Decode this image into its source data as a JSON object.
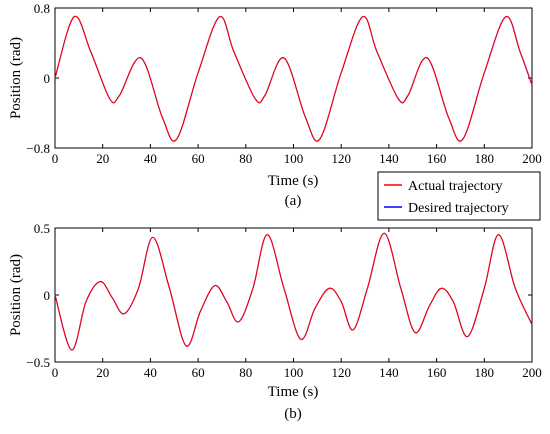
{
  "chart_data": [
    {
      "type": "line",
      "caption": "(a)",
      "xlabel": "Time (s)",
      "ylabel": "Position (rad)",
      "xlim": [
        0,
        200
      ],
      "ylim": [
        -0.8,
        0.8
      ],
      "xticks": [
        0,
        20,
        40,
        60,
        80,
        100,
        120,
        140,
        160,
        180,
        200
      ],
      "yticks": [
        -0.8,
        0,
        0.8
      ],
      "ytick_labels": [
        "−0.8",
        "0",
        "0.8"
      ],
      "grid": false,
      "series": [
        {
          "name": "Desired trajectory",
          "color": "#0000ff",
          "x": [
            0,
            8,
            15,
            23,
            27,
            36,
            45,
            51,
            60,
            69,
            75,
            84,
            88,
            96,
            105,
            111,
            120,
            129,
            135,
            144,
            148,
            156,
            165,
            171,
            180,
            189,
            195,
            200
          ],
          "y": [
            0.0,
            0.7,
            0.3,
            -0.24,
            -0.2,
            0.23,
            -0.45,
            -0.7,
            0.06,
            0.7,
            0.3,
            -0.24,
            -0.2,
            0.23,
            -0.45,
            -0.7,
            0.06,
            0.7,
            0.3,
            -0.24,
            -0.2,
            0.23,
            -0.45,
            -0.7,
            0.06,
            0.7,
            0.3,
            -0.08
          ]
        },
        {
          "name": "Actual trajectory",
          "color": "#ff0000",
          "x": [
            0,
            8,
            15,
            23,
            27,
            36,
            45,
            51,
            60,
            69,
            75,
            84,
            88,
            96,
            105,
            111,
            120,
            129,
            135,
            144,
            148,
            156,
            165,
            171,
            180,
            189,
            195,
            200
          ],
          "y": [
            0.0,
            0.7,
            0.3,
            -0.24,
            -0.2,
            0.23,
            -0.45,
            -0.7,
            0.06,
            0.7,
            0.3,
            -0.24,
            -0.2,
            0.23,
            -0.45,
            -0.7,
            0.06,
            0.7,
            0.3,
            -0.24,
            -0.2,
            0.23,
            -0.45,
            -0.7,
            0.06,
            0.7,
            0.3,
            -0.08
          ]
        }
      ]
    },
    {
      "type": "line",
      "caption": "(b)",
      "xlabel": "Time (s)",
      "ylabel": "Position (rad)",
      "xlim": [
        0,
        200
      ],
      "ylim": [
        -0.5,
        0.5
      ],
      "xticks": [
        0,
        20,
        40,
        60,
        80,
        100,
        120,
        140,
        160,
        180,
        200
      ],
      "yticks": [
        -0.5,
        0,
        0.5
      ],
      "ytick_labels": [
        "−0.5",
        "0",
        "0.5"
      ],
      "grid": false,
      "series": [
        {
          "name": "Desired trajectory",
          "color": "#0000ff",
          "x": [
            0,
            7,
            13,
            19,
            24,
            29,
            35,
            41,
            48,
            55,
            61,
            67,
            72,
            77,
            83,
            89,
            96,
            103,
            109,
            115,
            120,
            125,
            131,
            138,
            145,
            151,
            157,
            162,
            167,
            173,
            180,
            186,
            193,
            200
          ],
          "y": [
            0.0,
            -0.41,
            -0.05,
            0.1,
            -0.02,
            -0.14,
            0.05,
            0.43,
            0.05,
            -0.38,
            -0.12,
            0.07,
            -0.05,
            -0.2,
            0.05,
            0.45,
            0.05,
            -0.33,
            -0.1,
            0.05,
            -0.05,
            -0.26,
            0.05,
            0.46,
            0.05,
            -0.28,
            -0.08,
            0.05,
            -0.05,
            -0.31,
            0.05,
            0.45,
            0.05,
            -0.22
          ]
        },
        {
          "name": "Actual trajectory",
          "color": "#ff0000",
          "x": [
            0,
            7,
            13,
            19,
            24,
            29,
            35,
            41,
            48,
            55,
            61,
            67,
            72,
            77,
            83,
            89,
            96,
            103,
            109,
            115,
            120,
            125,
            131,
            138,
            145,
            151,
            157,
            162,
            167,
            173,
            180,
            186,
            193,
            200
          ],
          "y": [
            0.0,
            -0.41,
            -0.05,
            0.1,
            -0.02,
            -0.14,
            0.05,
            0.43,
            0.05,
            -0.38,
            -0.12,
            0.07,
            -0.05,
            -0.2,
            0.05,
            0.45,
            0.05,
            -0.33,
            -0.1,
            0.05,
            -0.05,
            -0.26,
            0.05,
            0.46,
            0.05,
            -0.28,
            -0.08,
            0.05,
            -0.05,
            -0.31,
            0.05,
            0.45,
            0.05,
            -0.22
          ]
        }
      ]
    }
  ],
  "legend": {
    "items": [
      {
        "label": "Actual trajectory",
        "color": "#ff0000"
      },
      {
        "label": "Desired trajectory",
        "color": "#0000ff"
      }
    ]
  }
}
